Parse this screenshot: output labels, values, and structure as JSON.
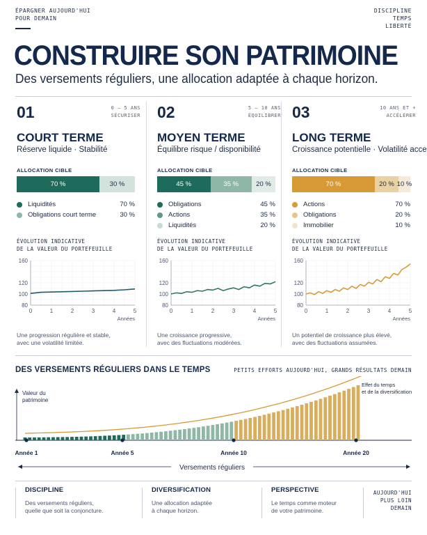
{
  "header": {
    "tagline_lines": [
      "ÉPARGNER AUJOURD'HUI",
      "POUR DEMAIN"
    ],
    "values_lines": [
      "DISCIPLINE",
      "TEMPS",
      "LIBERTÉ"
    ],
    "title": "CONSTRUIRE SON PATRIMOINE",
    "subtitle": "Des versements réguliers, une allocation adaptée à chaque horizon."
  },
  "columns": [
    {
      "number": "01",
      "horizon_lines": [
        "0 – 5 ANS",
        "SÉCURISER"
      ],
      "term": "COURT TERME",
      "term_sub": "Réserve liquide · Stabilité",
      "alloc_title": "ALLOCATION CIBLE",
      "segments": [
        {
          "label": "70 %",
          "share": 70,
          "color": "#1e6b5c",
          "text_color": "#ffffff"
        },
        {
          "label": "30 %",
          "share": 30,
          "color": "#d3e2dc",
          "text_color": "#1c2a44"
        }
      ],
      "legend": [
        {
          "label": "Liquidités",
          "pct": "70 %",
          "color": "#1e6b5c"
        },
        {
          "label": "Obligations court terme",
          "pct": "30 %",
          "color": "#8fb7a6"
        }
      ],
      "evo_lines": [
        "ÉVOLUTION INDICATIVE",
        "DE LA VALEUR DU PORTEFEUILLE"
      ],
      "desc_lines": [
        "Une progression régulière et stable,",
        "avec une volatilité limitée."
      ],
      "line_color": "#1e5a6b",
      "chart_data": {
        "type": "line",
        "x": [
          0,
          0.5,
          1,
          1.5,
          2,
          2.5,
          3,
          3.5,
          4,
          4.5,
          5
        ],
        "values": [
          101,
          103,
          103.5,
          104,
          104.5,
          105,
          105.5,
          106,
          106.5,
          107.5,
          109
        ],
        "xlabel": "Années",
        "xticks": [
          "0",
          "1",
          "2",
          "3",
          "4",
          "5"
        ],
        "yticks": [
          "80",
          "100",
          "120",
          "160"
        ],
        "ylim": [
          80,
          160
        ],
        "grid": true
      }
    },
    {
      "number": "02",
      "horizon_lines": [
        "5 – 10 ANS",
        "ÉQUILIBRER"
      ],
      "term": "MOYEN TERME",
      "term_sub": "Équilibre risque / disponibilité",
      "alloc_title": "ALLOCATION CIBLE",
      "segments": [
        {
          "label": "45 %",
          "share": 45,
          "color": "#1e6b5c",
          "text_color": "#ffffff"
        },
        {
          "label": "35 %",
          "share": 35,
          "color": "#8fb7a6",
          "text_color": "#ffffff"
        },
        {
          "label": "20 %",
          "share": 20,
          "color": "#e1ebe6",
          "text_color": "#1c2a44"
        }
      ],
      "legend": [
        {
          "label": "Obligations",
          "pct": "45 %",
          "color": "#1e6b5c"
        },
        {
          "label": "Actions",
          "pct": "35 %",
          "color": "#5f9985"
        },
        {
          "label": "Liquidités",
          "pct": "20 %",
          "color": "#c7dcd2"
        }
      ],
      "evo_lines": [
        "ÉVOLUTION INDICATIVE",
        "DE LA VALEUR DU PORTEFEUILLE"
      ],
      "desc_lines": [
        "Une croissance progressive,",
        "avec des fluctuations modérées."
      ],
      "line_color": "#2f7766",
      "chart_data": {
        "type": "line",
        "x": [
          0,
          0.25,
          0.5,
          0.75,
          1,
          1.25,
          1.5,
          1.75,
          2,
          2.25,
          2.5,
          2.75,
          3,
          3.25,
          3.5,
          3.75,
          4,
          4.25,
          4.5,
          4.75,
          5
        ],
        "values": [
          100,
          102,
          101,
          104,
          103,
          106,
          105,
          108,
          107,
          110,
          106,
          109,
          111,
          108,
          113,
          111,
          116,
          114,
          119,
          118,
          122
        ],
        "xlabel": "Années",
        "xticks": [
          "0",
          "1",
          "2",
          "3",
          "4",
          "5"
        ],
        "yticks": [
          "80",
          "100",
          "120",
          "160"
        ],
        "ylim": [
          80,
          160
        ],
        "grid": true
      }
    },
    {
      "number": "03",
      "horizon_lines": [
        "10 ANS ET +",
        "ACCÉLÉRER"
      ],
      "term": "LONG TERME",
      "term_sub": "Croissance potentielle · Volatilité acceptée",
      "alloc_title": "ALLOCATION CIBLE",
      "segments": [
        {
          "label": "70 %",
          "share": 70,
          "color": "#d89a34",
          "text_color": "#ffffff"
        },
        {
          "label": "20 %",
          "share": 20,
          "color": "#ead1a2",
          "text_color": "#1c2a44"
        },
        {
          "label": "10 %",
          "share": 10,
          "color": "#f4ead6",
          "text_color": "#1c2a44"
        }
      ],
      "legend": [
        {
          "label": "Actions",
          "pct": "70 %",
          "color": "#d89a34"
        },
        {
          "label": "Obligations",
          "pct": "20 %",
          "color": "#e6c58a"
        },
        {
          "label": "Immobilier",
          "pct": "10 %",
          "color": "#f1e4c8"
        }
      ],
      "evo_lines": [
        "ÉVOLUTION INDICATIVE",
        "DE LA VALEUR DU PORTEFEUILLE"
      ],
      "desc_lines": [
        "Un potentiel de croissance plus élevé,",
        "avec des fluctuations assumées."
      ],
      "line_color": "#d89a34",
      "chart_data": {
        "type": "line",
        "x": [
          0,
          0.2,
          0.4,
          0.6,
          0.8,
          1,
          1.2,
          1.4,
          1.6,
          1.8,
          2,
          2.2,
          2.4,
          2.6,
          2.8,
          3,
          3.2,
          3.4,
          3.6,
          3.8,
          4,
          4.2,
          4.4,
          4.6,
          4.8,
          5
        ],
        "values": [
          100,
          102,
          99,
          104,
          101,
          106,
          103,
          108,
          105,
          111,
          108,
          114,
          110,
          117,
          114,
          121,
          118,
          126,
          122,
          131,
          128,
          137,
          134,
          144,
          148,
          154
        ],
        "xlabel": "Années",
        "xticks": [
          "0",
          "1",
          "2",
          "3",
          "4",
          "5"
        ],
        "yticks": [
          "80",
          "100",
          "120",
          "160"
        ],
        "ylim": [
          80,
          160
        ],
        "grid": true
      }
    }
  ],
  "growth_section": {
    "title": "DES VERSEMENTS RÉGULIERS DANS LE TEMPS",
    "tag": "PETITS EFFORTS AUJOURD'HUI, GRANDS RÉSULTATS DEMAIN",
    "y_label_lines": [
      "Valeur du",
      "patrimoine"
    ],
    "annotation_lines": [
      "Effet du temps",
      "et de la diversification"
    ],
    "markers": [
      "Année 1",
      "Année 5",
      "Année 10",
      "Année 20"
    ],
    "axis_label": "Versements réguliers",
    "colors": {
      "short": "#1e6b5c",
      "mid": "#8fb7a6",
      "long": "#d8ad5c",
      "curve": "#d89a34"
    }
  },
  "pillars": [
    {
      "title": "DISCIPLINE",
      "lines": [
        "Des versements réguliers,",
        "quelle que soit la conjoncture."
      ]
    },
    {
      "title": "DIVERSIFICATION",
      "lines": [
        "Une allocation adaptée",
        "à chaque horizon."
      ]
    },
    {
      "title": "PERSPECTIVE",
      "lines": [
        "Le temps comme moteur",
        "de votre patrimoine."
      ]
    }
  ],
  "closing_lines": [
    "AUJOURD'HUI",
    "PLUS LOIN",
    "DEMAIN"
  ]
}
